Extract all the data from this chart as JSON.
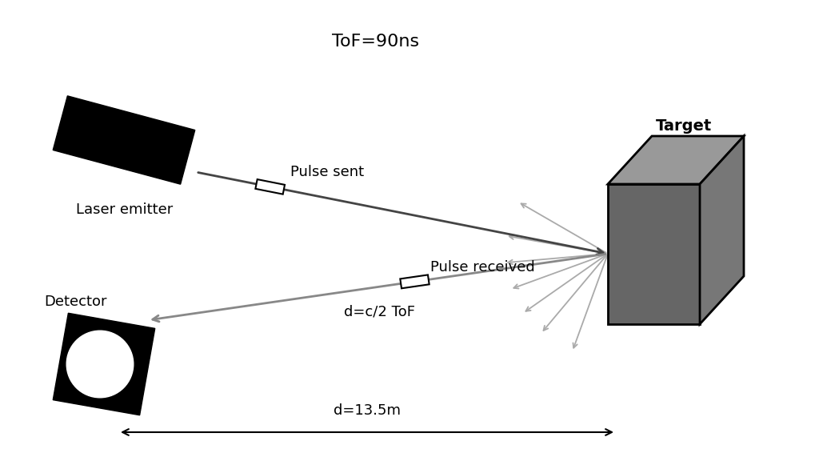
{
  "bg_color": "#ffffff",
  "title_text": "ToF=90ns",
  "title_fontsize": 16,
  "laser_label": "Laser emitter",
  "detector_label": "Detector",
  "target_label": "Target",
  "pulse_sent_label": "Pulse sent",
  "pulse_received_label": "Pulse received",
  "d_formula_label": "d=c/2 ToF",
  "d_value_label": "d=13.5m",
  "black": "#000000",
  "dark_gray": "#444444",
  "mid_gray": "#888888",
  "light_gray": "#aaaaaa",
  "target_front": "#666666",
  "target_top": "#999999",
  "target_right": "#777777",
  "label_fontsize": 13
}
